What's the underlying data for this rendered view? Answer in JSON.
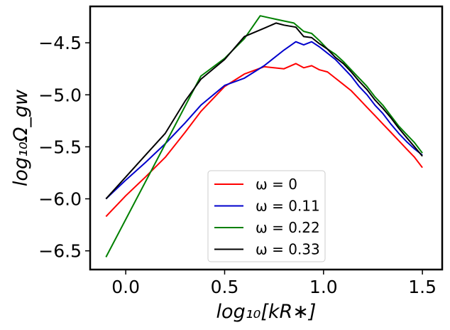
{
  "chart_data": {
    "type": "line",
    "title": "",
    "xlabel": "log₁₀[kR∗]",
    "ylabel": "log₁₀Ω_gw",
    "xlim": [
      -0.18,
      1.6
    ],
    "ylim": [
      -6.68,
      -4.15
    ],
    "xticks": [
      0.0,
      0.5,
      1.0,
      1.5
    ],
    "xtick_labels": [
      "0.0",
      "0.5",
      "1.0",
      "1.5"
    ],
    "yticks": [
      -6.5,
      -6.0,
      -5.5,
      -5.0,
      -4.5
    ],
    "ytick_labels": [
      "−6.5",
      "−6.0",
      "−5.5",
      "−5.0",
      "−4.5"
    ],
    "grid": false,
    "legend_position": "lower-center",
    "series": [
      {
        "name": "ω = 0",
        "color": "#ff0000",
        "x": [
          -0.1,
          0.0,
          0.1,
          0.2,
          0.3,
          0.38,
          0.5,
          0.6,
          0.7,
          0.8,
          0.86,
          0.9,
          0.94,
          0.98,
          1.02,
          1.06,
          1.1,
          1.14,
          1.18,
          1.22,
          1.26,
          1.3,
          1.34,
          1.38,
          1.42,
          1.46,
          1.5
        ],
        "y": [
          -6.17,
          -5.97,
          -5.79,
          -5.6,
          -5.36,
          -5.16,
          -4.92,
          -4.8,
          -4.73,
          -4.75,
          -4.7,
          -4.74,
          -4.72,
          -4.76,
          -4.78,
          -4.84,
          -4.9,
          -4.96,
          -5.04,
          -5.12,
          -5.2,
          -5.28,
          -5.36,
          -5.44,
          -5.52,
          -5.6,
          -5.7
        ]
      },
      {
        "name": "ω = 0.11",
        "color": "#0000cc",
        "x": [
          -0.1,
          0.0,
          0.1,
          0.2,
          0.3,
          0.38,
          0.5,
          0.6,
          0.7,
          0.8,
          0.86,
          0.9,
          0.94,
          0.98,
          1.02,
          1.06,
          1.1,
          1.14,
          1.18,
          1.22,
          1.26,
          1.3,
          1.34,
          1.38,
          1.42,
          1.46,
          1.5
        ],
        "y": [
          -6.0,
          -5.82,
          -5.65,
          -5.47,
          -5.27,
          -5.1,
          -4.91,
          -4.84,
          -4.72,
          -4.57,
          -4.49,
          -4.52,
          -4.49,
          -4.54,
          -4.6,
          -4.66,
          -4.74,
          -4.82,
          -4.92,
          -5.0,
          -5.1,
          -5.18,
          -5.28,
          -5.37,
          -5.45,
          -5.52,
          -5.58
        ]
      },
      {
        "name": "ω = 0.22",
        "color": "#008000",
        "x": [
          -0.1,
          0.38,
          0.5,
          0.6,
          0.68,
          0.75,
          0.8,
          0.85,
          0.9,
          0.94,
          0.98,
          1.02,
          1.06,
          1.1,
          1.14,
          1.18,
          1.22,
          1.26,
          1.3,
          1.34,
          1.38,
          1.42,
          1.46,
          1.5
        ],
        "y": [
          -6.56,
          -4.82,
          -4.65,
          -4.46,
          -4.24,
          -4.27,
          -4.29,
          -4.31,
          -4.39,
          -4.41,
          -4.48,
          -4.56,
          -4.61,
          -4.68,
          -4.76,
          -4.84,
          -4.92,
          -5.02,
          -5.1,
          -5.2,
          -5.3,
          -5.38,
          -5.46,
          -5.56
        ]
      },
      {
        "name": "ω = 0.33",
        "color": "#000000",
        "x": [
          -0.1,
          0.0,
          0.1,
          0.2,
          0.3,
          0.38,
          0.5,
          0.6,
          0.7,
          0.76,
          0.8,
          0.86,
          0.9,
          0.94,
          0.98,
          1.02,
          1.06,
          1.1,
          1.14,
          1.18,
          1.22,
          1.26,
          1.3,
          1.34,
          1.38,
          1.42,
          1.46,
          1.5
        ],
        "y": [
          -6.0,
          -5.79,
          -5.58,
          -5.37,
          -5.06,
          -4.85,
          -4.66,
          -4.44,
          -4.36,
          -4.31,
          -4.33,
          -4.35,
          -4.44,
          -4.45,
          -4.51,
          -4.56,
          -4.64,
          -4.7,
          -4.78,
          -4.87,
          -4.95,
          -5.05,
          -5.13,
          -5.22,
          -5.32,
          -5.41,
          -5.5,
          -5.59
        ]
      }
    ]
  }
}
